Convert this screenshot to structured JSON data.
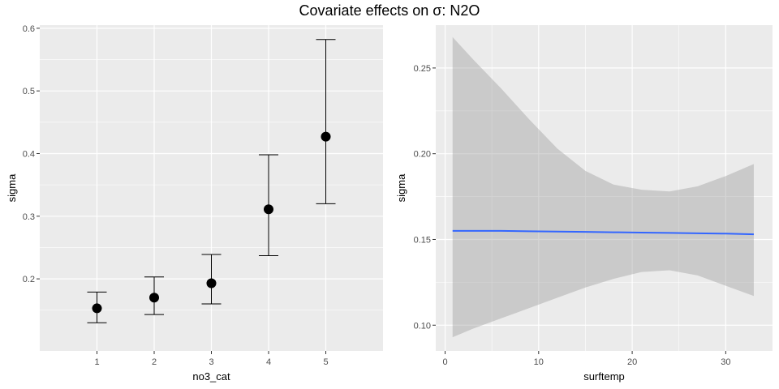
{
  "figure": {
    "title": "Covariate effects on σ: N2O"
  },
  "colors": {
    "panel_bg": "#ebebeb",
    "grid_major": "#ffffff",
    "point": "#000000",
    "line": "#3366ff",
    "ribbon": "#c7c7c7",
    "tick_text": "#4d4d4d"
  },
  "chart_data": [
    {
      "type": "scatter",
      "subtype": "point-with-errorbars",
      "title": "",
      "xlabel": "no3_cat",
      "ylabel": "sigma",
      "categories": [
        "1",
        "2",
        "3",
        "4",
        "5"
      ],
      "values": [
        0.153,
        0.17,
        0.193,
        0.311,
        0.427
      ],
      "lower": [
        0.13,
        0.143,
        0.16,
        0.237,
        0.32
      ],
      "upper": [
        0.179,
        0.203,
        0.239,
        0.398,
        0.582
      ],
      "ylim": [
        0.085,
        0.605
      ],
      "y_ticks": [
        0.2,
        0.3,
        0.4,
        0.5,
        0.6
      ],
      "y_tick_labels": [
        "0.2",
        "0.3",
        "0.4",
        "0.5",
        "0.6"
      ],
      "grid": true
    },
    {
      "type": "line",
      "subtype": "line-with-confidence-ribbon",
      "title": "",
      "xlabel": "surftemp",
      "ylabel": "sigma",
      "x": [
        0.8,
        3,
        6,
        9,
        12,
        15,
        18,
        21,
        24,
        27,
        30,
        33
      ],
      "values": [
        0.155,
        0.155,
        0.155,
        0.1548,
        0.1546,
        0.1544,
        0.1542,
        0.154,
        0.1538,
        0.1536,
        0.1534,
        0.153
      ],
      "lower": [
        0.093,
        0.098,
        0.104,
        0.11,
        0.116,
        0.122,
        0.127,
        0.131,
        0.132,
        0.129,
        0.123,
        0.117
      ],
      "upper": [
        0.268,
        0.255,
        0.238,
        0.22,
        0.203,
        0.19,
        0.182,
        0.179,
        0.178,
        0.181,
        0.187,
        0.194
      ],
      "xlim": [
        -1,
        35
      ],
      "ylim": [
        0.085,
        0.275
      ],
      "x_ticks": [
        0,
        10,
        20,
        30
      ],
      "x_tick_labels": [
        "0",
        "10",
        "20",
        "30"
      ],
      "y_ticks": [
        0.1,
        0.15,
        0.2,
        0.25
      ],
      "y_tick_labels": [
        "0.10",
        "0.15",
        "0.20",
        "0.25"
      ],
      "grid": true
    }
  ]
}
